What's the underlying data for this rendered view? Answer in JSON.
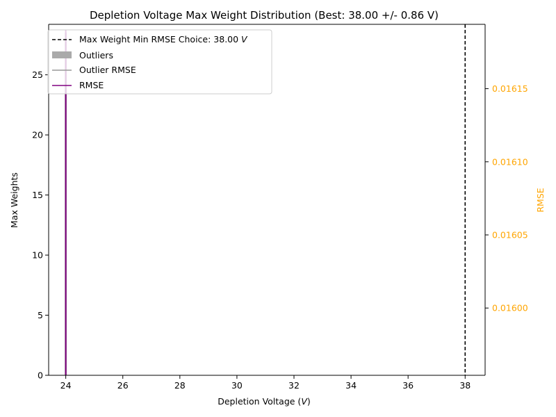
{
  "chart_data": {
    "type": "bar",
    "title": "Depletion Voltage Max Weight Distribution (Best: 38.00 +/- 0.86 V)",
    "xlabel_prefix": "Depletion Voltage (",
    "xlabel_unit": "V",
    "xlabel_suffix": ")",
    "ylabel": "Max Weights",
    "y2label": "RMSE",
    "xlim": [
      23.4,
      38.7
    ],
    "ylim": [
      0,
      29.2
    ],
    "y2lim": [
      0.015954,
      0.016194
    ],
    "xticks": [
      "24",
      "26",
      "28",
      "30",
      "32",
      "34",
      "36",
      "38"
    ],
    "xtick_values": [
      24,
      26,
      28,
      30,
      32,
      34,
      36,
      38
    ],
    "yticks": [
      "0",
      "5",
      "10",
      "15",
      "20",
      "25"
    ],
    "ytick_values": [
      0,
      5,
      10,
      15,
      20,
      25
    ],
    "y2ticks": [
      "0.01600",
      "0.01605",
      "0.01610",
      "0.01615"
    ],
    "y2tick_values": [
      0.016,
      0.01605,
      0.0161,
      0.01615
    ],
    "best_choice": {
      "x": 38.0,
      "legend_prefix": "Max Weight Min RMSE Choice: 38.00 ",
      "legend_unit": "V",
      "color": "#000000"
    },
    "series": [
      {
        "name": "Outliers",
        "kind": "bar",
        "x": 24.0,
        "value": 28.5,
        "color": "#aaaaaa"
      },
      {
        "name": "Outlier RMSE",
        "kind": "line",
        "x": [
          24.0
        ],
        "values": [
          0.01618
        ],
        "color": "#999999"
      },
      {
        "name": "RMSE",
        "kind": "line",
        "x": [
          24.0,
          24.0
        ],
        "values": [
          0.015954,
          0.01619
        ],
        "color": "#800080"
      }
    ],
    "legend_position": "upper-left",
    "grid": false,
    "y2_color": "#ffa500"
  }
}
